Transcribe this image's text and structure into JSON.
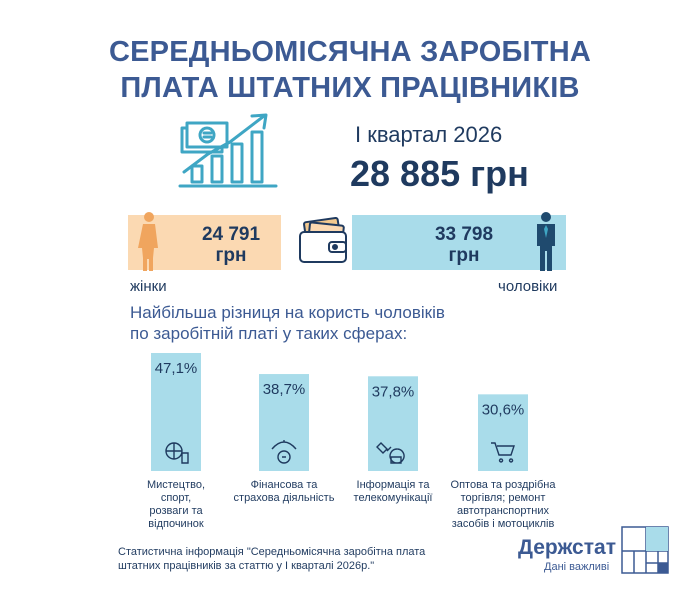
{
  "header": {
    "title_line1": "СЕРЕДНЬОМІСЯЧНА ЗАРОБІТНА",
    "title_line2": "ПЛАТА ШТАТНИХ ПРАЦІВНИКІВ"
  },
  "summary": {
    "quarter": "І квартал 2026",
    "total": "28 885 грн"
  },
  "gender": {
    "women_value": "24 791",
    "women_unit": "грн",
    "women_label": "жінки",
    "men_value": "33 798",
    "men_unit": "грн",
    "men_label": "чоловіки"
  },
  "icons": {
    "growth": "salary-growth-chart-icon",
    "wallet": "wallet-icon",
    "woman": "woman-figure-icon",
    "man": "man-figure-icon"
  },
  "colors": {
    "title": "#3c5a93",
    "text": "#1f3a5f",
    "women_box": "#fbd9b2",
    "men_box": "#a9dcea",
    "bar": "#a9dcea"
  },
  "subtitle": {
    "line1": "Найбільша різниця на користь чоловіків",
    "line2": "по заробітній платі у таких сферах:"
  },
  "chart_data": {
    "type": "bar",
    "categories": [
      "Мистецтво, спорт, розваги та відпочинок",
      "Фінансова та страхова діяльність",
      "Інформація та телекомунікації",
      "Оптова та роздрібна торгівля; ремонт автотранспортних засобів і мотоциклів"
    ],
    "category_lines": [
      [
        "Мистецтво,",
        "спорт,",
        "розваги та",
        "відпочинок"
      ],
      [
        "Фінансова та",
        "страхова діяльність"
      ],
      [
        "Інформація та",
        "телекомунікації"
      ],
      [
        "Оптова та роздрібна",
        "торгівля; ремонт",
        "автотранспортних",
        "засобів і мотоциклів"
      ]
    ],
    "category_icons": [
      "sports-icon",
      "finance-umbrella-icon",
      "telecom-satellite-icon",
      "shopping-cart-icon"
    ],
    "values": [
      47.1,
      38.7,
      37.8,
      30.6
    ],
    "value_labels": [
      "47,1%",
      "38,7%",
      "37,8%",
      "30,6%"
    ],
    "unit": "%",
    "title": "",
    "xlabel": "",
    "ylabel": "",
    "ylim": [
      0,
      47.1
    ],
    "grid": false,
    "legend": "none"
  },
  "footer": {
    "note_line1": "Статистична інформація \"Середньомісячна заробітна плата",
    "note_line2": "штатних працівників за статтю у І кварталі 2026р.\"",
    "logo": "Держстат",
    "tagline": "Дані важливі"
  }
}
